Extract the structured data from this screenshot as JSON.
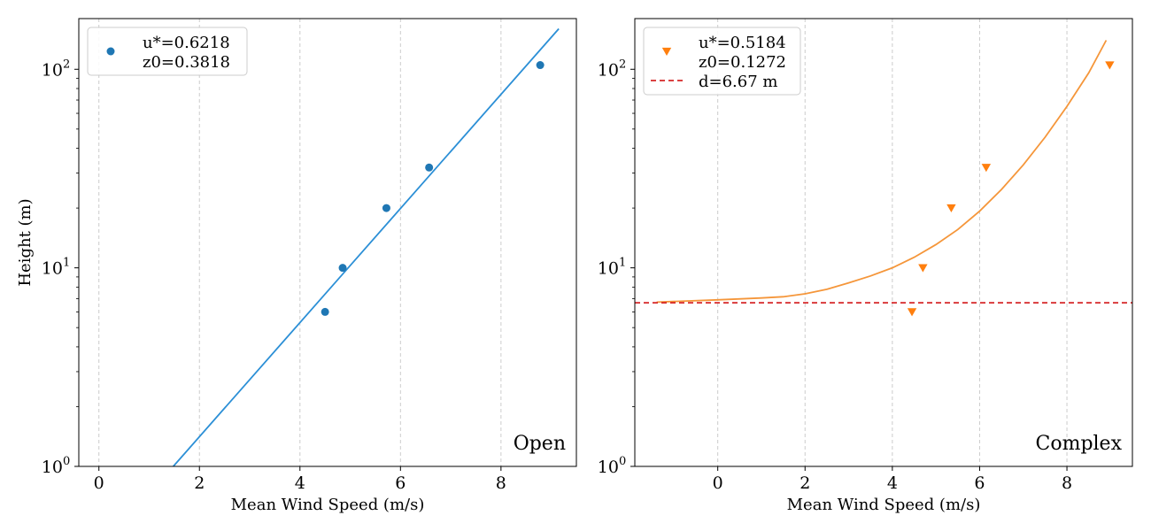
{
  "chart_data": [
    {
      "type": "scatter",
      "panel_label": "Open",
      "xlabel": "Mean Wind Speed (m/s)",
      "ylabel": "Height (m)",
      "xlim": [
        -0.4,
        9.5
      ],
      "ylim": [
        1,
        180
      ],
      "yscale": "log",
      "xticks": [
        0,
        2,
        4,
        6,
        8
      ],
      "xtick_labels": [
        "0",
        "2",
        "4",
        "6",
        "8"
      ],
      "yticks": [
        1,
        10,
        100
      ],
      "ytick_labels": [
        "10^0",
        "10^1",
        "10^2"
      ],
      "grid": "x-dashed",
      "legend_position": "upper-left",
      "series": [
        {
          "kind": "points",
          "marker": "circle",
          "color": "#1f77b4",
          "x": [
            4.5,
            4.85,
            5.72,
            6.57,
            8.78
          ],
          "y": [
            6,
            10,
            20,
            32,
            105
          ]
        },
        {
          "kind": "fit-line",
          "color": "#2b8fd6",
          "x": [
            1.48,
            9.15
          ],
          "y": [
            1,
            160
          ]
        }
      ],
      "legend": [
        {
          "symbol": "circle",
          "color": "#1f77b4",
          "lines": [
            "u*=0.6218",
            "z0=0.3818"
          ]
        }
      ]
    },
    {
      "type": "scatter",
      "panel_label": "Complex",
      "xlabel": "Mean Wind Speed (m/s)",
      "ylabel": "",
      "xlim": [
        -1.9,
        9.5
      ],
      "ylim": [
        1,
        180
      ],
      "yscale": "log",
      "xticks": [
        0,
        2,
        4,
        6,
        8
      ],
      "xtick_labels": [
        "0",
        "2",
        "4",
        "6",
        "8"
      ],
      "yticks": [
        1,
        10,
        100
      ],
      "ytick_labels": [
        "10^0",
        "10^1",
        "10^2"
      ],
      "grid": "x-dashed",
      "legend_position": "upper-left",
      "series": [
        {
          "kind": "points",
          "marker": "triangle-down",
          "color": "#ff7f0e",
          "x": [
            4.45,
            4.7,
            5.35,
            6.15,
            8.98
          ],
          "y": [
            6,
            10,
            20,
            32,
            105
          ]
        },
        {
          "kind": "fit-curve",
          "color": "#f5963a",
          "x": [
            -1.4,
            0,
            1,
            1.5,
            2,
            2.5,
            3,
            3.5,
            4,
            4.5,
            5,
            5.5,
            6,
            6.5,
            7,
            7.5,
            8,
            8.5,
            8.9
          ],
          "y": [
            6.72,
            6.9,
            7.05,
            7.15,
            7.4,
            7.8,
            8.4,
            9.1,
            10.0,
            11.3,
            13.1,
            15.6,
            19.3,
            24.8,
            33.0,
            45.5,
            65.0,
            96.0,
            140.0
          ]
        },
        {
          "kind": "hline",
          "style": "dashed",
          "color": "#d62728",
          "y": 6.67
        }
      ],
      "legend": [
        {
          "symbol": "triangle-down",
          "color": "#ff7f0e",
          "lines": [
            "u*=0.5184",
            "z0=0.1272"
          ]
        },
        {
          "symbol": "dashed-line",
          "color": "#d62728",
          "lines": [
            "d=6.67 m"
          ]
        }
      ]
    }
  ]
}
